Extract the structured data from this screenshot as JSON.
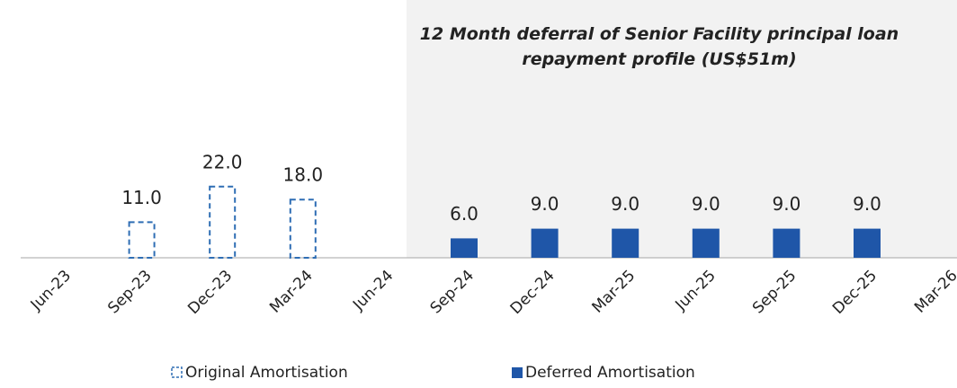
{
  "chart_data": {
    "type": "bar",
    "title": "12 Month deferral of Senior Facility principal loan repayment profile (US$51m)",
    "categories": [
      "Jun-23",
      "Sep-23",
      "Dec-23",
      "Mar-24",
      "Jun-24",
      "Sep-24",
      "Dec-24",
      "Mar-25",
      "Jun-25",
      "Sep-25",
      "Dec-25",
      "Mar-26"
    ],
    "series": [
      {
        "name": "Original Amortisation",
        "color": "#2e6db4",
        "style": "dashed",
        "values": [
          null,
          11,
          22,
          18,
          null,
          null,
          null,
          null,
          null,
          null,
          null,
          null
        ],
        "value_labels": [
          null,
          "11.0",
          "22.0",
          "18.0",
          null,
          null,
          null,
          null,
          null,
          null,
          null,
          null
        ]
      },
      {
        "name": "Deferred Amortisation",
        "color": "#1f56a8",
        "style": "solid",
        "values": [
          null,
          null,
          null,
          null,
          null,
          6,
          9,
          9,
          9,
          9,
          9,
          null
        ],
        "value_labels": [
          null,
          null,
          null,
          null,
          null,
          "6.0",
          "9.0",
          "9.0",
          "9.0",
          "9.0",
          "9.0",
          null
        ]
      }
    ]
  }
}
